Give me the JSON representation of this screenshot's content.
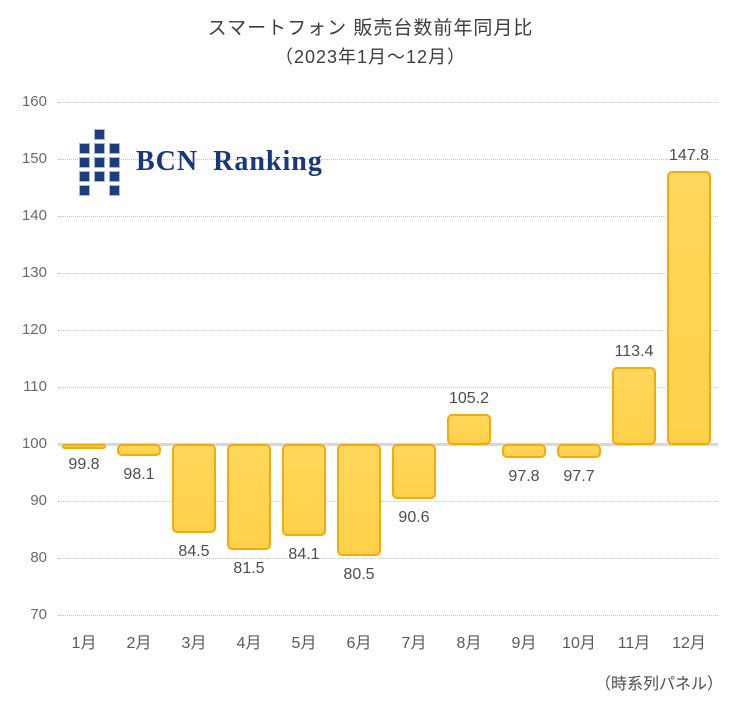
{
  "title": {
    "line1": "スマートフォン 販売台数前年同月比",
    "line2": "（2023年1月〜12月）"
  },
  "logo": {
    "text": "BCN Ranking"
  },
  "footer": {
    "note": "（時系列パネル）"
  },
  "colors": {
    "bar_fill": "#FFD24B",
    "bar_border": "#F2AB0C",
    "grid_dotted": "#C7C7C7",
    "baseline_gray": "#D8D8D8",
    "logo_navy": "#1D3D7E",
    "label_gray": "#4D4D4D"
  },
  "chart_data": {
    "type": "bar",
    "title": "スマートフォン 販売台数前年同月比（2023年1月〜12月）",
    "categories": [
      "1月",
      "2月",
      "3月",
      "4月",
      "5月",
      "6月",
      "7月",
      "8月",
      "9月",
      "10月",
      "11月",
      "12月"
    ],
    "values": [
      99.8,
      98.1,
      84.5,
      81.5,
      84.1,
      80.5,
      90.6,
      105.2,
      97.8,
      97.7,
      113.4,
      147.8
    ],
    "baseline": 100,
    "ylim": [
      70,
      160
    ],
    "yticks": [
      160,
      150,
      140,
      130,
      120,
      110,
      100,
      90,
      80,
      70
    ],
    "xlabel": "",
    "ylabel": "",
    "grid": "horizontal-dotted",
    "legend": "none",
    "value_labels": "on",
    "annotation": "（時系列パネル）"
  }
}
